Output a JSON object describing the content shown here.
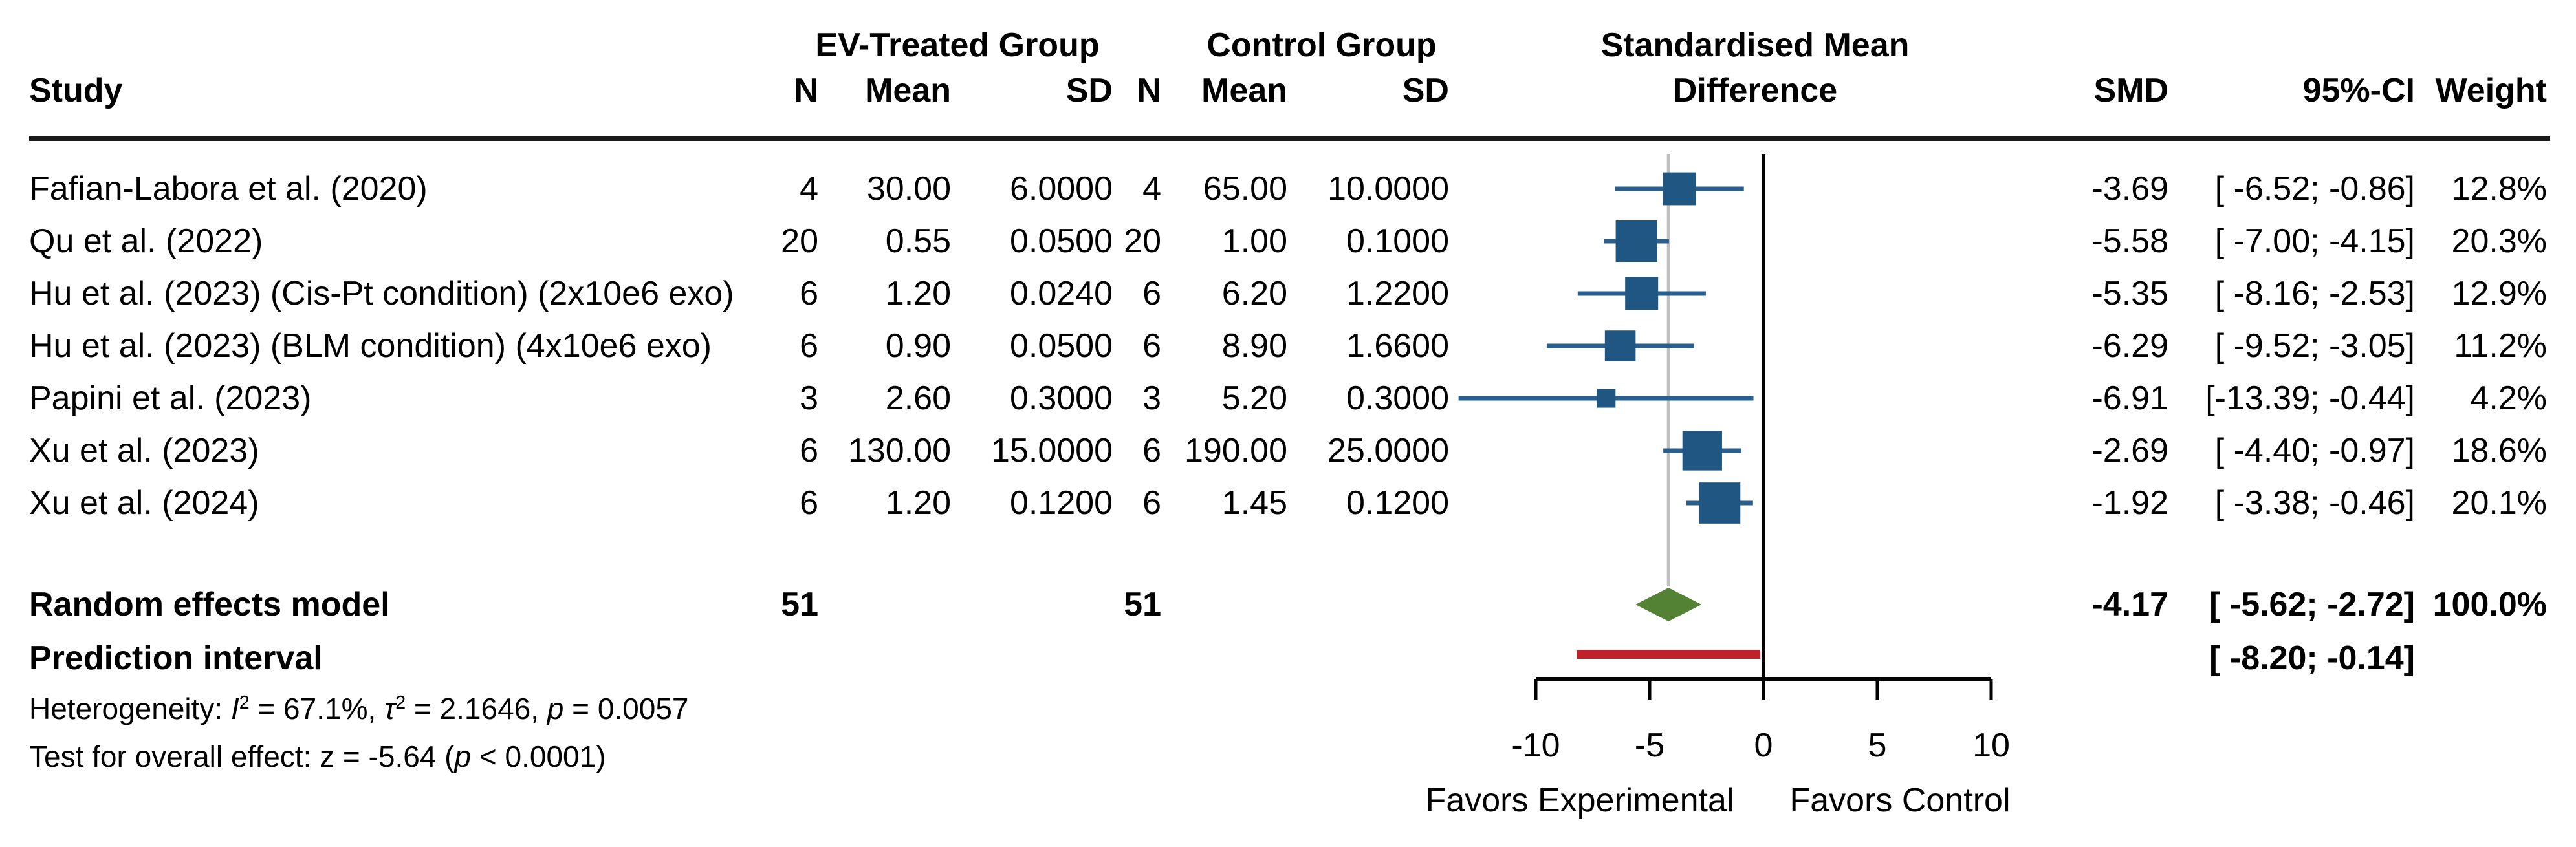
{
  "header": {
    "study": "Study",
    "group1": "EV-Treated Group",
    "group2": "Control Group",
    "smd_line1": "Standardised Mean",
    "smd_line2": "Difference",
    "col_n1": "N",
    "col_mean1": "Mean",
    "col_sd1": "SD",
    "col_n2": "N",
    "col_mean2": "Mean",
    "col_sd2": "SD",
    "col_smd": "SMD",
    "col_ci": "95%-CI",
    "col_weight": "Weight"
  },
  "colors": {
    "square": "#205682",
    "ci_line": "#2A5E8C",
    "diamond": "#548235",
    "prediction_bar": "#C0222C",
    "effect_line": "#C0C0C0",
    "zero_line": "#000000",
    "axis": "#000000"
  },
  "chart_data": {
    "type": "forest",
    "title": "",
    "xlim": [
      -10,
      10
    ],
    "studies": [
      {
        "name": "Fafian-Labora et al. (2020)",
        "n1": "4",
        "mean1": "30.00",
        "sd1": "6.0000",
        "n2": "4",
        "mean2": "65.00",
        "sd2": "10.0000",
        "smd": -3.69,
        "ci_lo": -6.52,
        "ci_hi": -0.86,
        "smd_label": "-3.69",
        "ci_label": "[ -6.52; -0.86]",
        "weight": 12.8,
        "weight_label": "12.8%"
      },
      {
        "name": "Qu et al. (2022)",
        "n1": "20",
        "mean1": "0.55",
        "sd1": "0.0500",
        "n2": "20",
        "mean2": "1.00",
        "sd2": "0.1000",
        "smd": -5.58,
        "ci_lo": -7.0,
        "ci_hi": -4.15,
        "smd_label": "-5.58",
        "ci_label": "[ -7.00; -4.15]",
        "weight": 20.3,
        "weight_label": "20.3%"
      },
      {
        "name": "Hu et al. (2023) (Cis-Pt condition) (2x10e6 exo)",
        "n1": "6",
        "mean1": "1.20",
        "sd1": "0.0240",
        "n2": "6",
        "mean2": "6.20",
        "sd2": "1.2200",
        "smd": -5.35,
        "ci_lo": -8.16,
        "ci_hi": -2.53,
        "smd_label": "-5.35",
        "ci_label": "[ -8.16; -2.53]",
        "weight": 12.9,
        "weight_label": "12.9%"
      },
      {
        "name": "Hu et al. (2023) (BLM condition) (4x10e6 exo)",
        "n1": "6",
        "mean1": "0.90",
        "sd1": "0.0500",
        "n2": "6",
        "mean2": "8.90",
        "sd2": "1.6600",
        "smd": -6.29,
        "ci_lo": -9.52,
        "ci_hi": -3.05,
        "smd_label": "-6.29",
        "ci_label": "[ -9.52; -3.05]",
        "weight": 11.2,
        "weight_label": "11.2%"
      },
      {
        "name": "Papini et al. (2023)",
        "n1": "3",
        "mean1": "2.60",
        "sd1": "0.3000",
        "n2": "3",
        "mean2": "5.20",
        "sd2": "0.3000",
        "smd": -6.91,
        "ci_lo": -13.39,
        "ci_hi": -0.44,
        "smd_label": "-6.91",
        "ci_label": "[-13.39; -0.44]",
        "weight": 4.2,
        "weight_label": "4.2%"
      },
      {
        "name": "Xu et al. (2023)",
        "n1": "6",
        "mean1": "130.00",
        "sd1": "15.0000",
        "n2": "6",
        "mean2": "190.00",
        "sd2": "25.0000",
        "smd": -2.69,
        "ci_lo": -4.4,
        "ci_hi": -0.97,
        "smd_label": "-2.69",
        "ci_label": "[ -4.40; -0.97]",
        "weight": 18.6,
        "weight_label": "18.6%"
      },
      {
        "name": "Xu et al. (2024)",
        "n1": "6",
        "mean1": "1.20",
        "sd1": "0.1200",
        "n2": "6",
        "mean2": "1.45",
        "sd2": "0.1200",
        "smd": -1.92,
        "ci_lo": -3.38,
        "ci_hi": -0.46,
        "smd_label": "-1.92",
        "ci_label": "[ -3.38; -0.46]",
        "weight": 20.1,
        "weight_label": "20.1%"
      }
    ],
    "summary": {
      "label": "Random effects model",
      "n1": "51",
      "n2": "51",
      "smd": -4.17,
      "ci_lo": -5.62,
      "ci_hi": -2.72,
      "smd_label": "-4.17",
      "ci_label": "[ -5.62; -2.72]",
      "weight_label": "100.0%"
    },
    "prediction": {
      "label": "Prediction interval",
      "lo": -8.2,
      "hi": -0.14,
      "ci_label": "[ -8.20; -0.14]"
    },
    "footnotes": [
      {
        "segments": [
          {
            "t": "Heterogeneity: "
          },
          {
            "t": "I",
            "i": true
          },
          {
            "t": "2",
            "sup": true
          },
          {
            "t": " = 67.1%, "
          },
          {
            "t": "τ",
            "i": true
          },
          {
            "t": "2",
            "sup": true
          },
          {
            "t": " = 2.1646, "
          },
          {
            "t": "p",
            "i": true
          },
          {
            "t": " = 0.0057"
          }
        ]
      },
      {
        "segments": [
          {
            "t": "Test for overall effect: z = -5.64 ("
          },
          {
            "t": "p",
            "i": true
          },
          {
            "t": " < 0.0001)"
          }
        ]
      }
    ],
    "axis": {
      "ticks": [
        -10,
        -5,
        0,
        5,
        10
      ],
      "tick_labels": [
        "-10",
        "-5",
        "0",
        "5",
        "10"
      ],
      "left_label": "Favors Experimental",
      "right_label": "Favors Control",
      "grid": false
    }
  }
}
